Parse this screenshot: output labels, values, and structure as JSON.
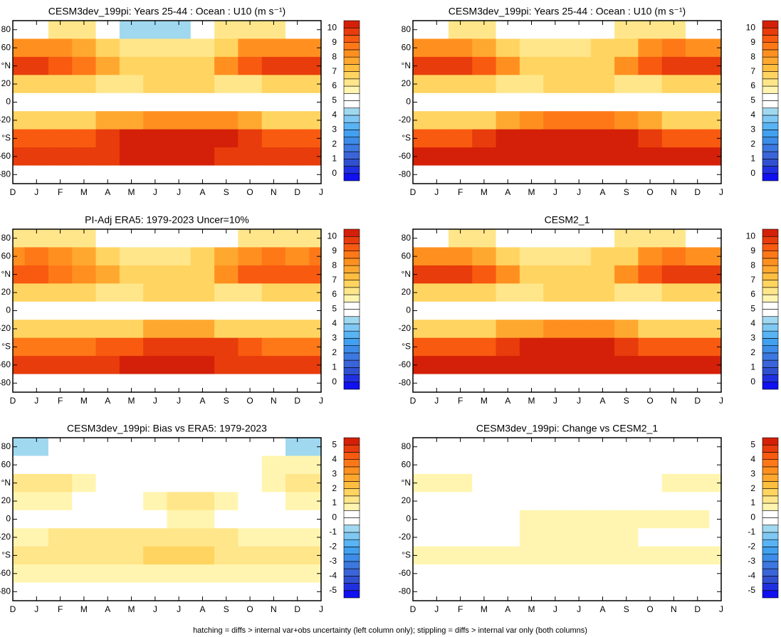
{
  "chart_data": [
    {
      "type": "heatmap",
      "title": "CESM3dev_199pi: Years 25-44 : Ocean : U10 (m s⁻¹)",
      "categories": [
        "D",
        "J",
        "F",
        "M",
        "A",
        "M",
        "J",
        "J",
        "A",
        "S",
        "O",
        "N",
        "D",
        "J"
      ],
      "y": [
        80,
        60,
        40,
        20,
        0,
        -20,
        -40,
        -60,
        -80
      ],
      "ylim": [
        -90,
        90
      ],
      "yticks": [
        80,
        60,
        {
          "value": 40,
          "label": "°N"
        },
        20,
        0,
        -20,
        {
          "value": -40,
          "label": "°S"
        },
        -60,
        -80
      ],
      "values": [
        [
          5,
          5,
          6,
          6,
          5,
          4,
          4,
          4,
          5,
          6,
          6,
          6,
          5,
          5
        ],
        [
          8,
          8,
          8,
          7.5,
          7,
          6,
          6,
          6,
          6,
          7,
          8,
          8,
          8,
          8
        ],
        [
          9.5,
          9.5,
          9,
          8.5,
          7.5,
          7,
          6.5,
          6.5,
          7,
          8,
          9,
          9.5,
          9.5,
          9.5
        ],
        [
          7,
          7,
          7,
          6.5,
          6,
          6,
          7,
          7,
          7,
          6,
          6,
          6.5,
          7,
          7
        ],
        [
          5,
          5,
          5,
          4.5,
          4.5,
          5,
          5,
          5,
          5,
          5,
          5,
          5,
          5,
          5
        ],
        [
          7,
          7,
          7,
          7,
          7.5,
          7.5,
          8,
          8,
          8,
          8,
          7.5,
          7,
          7,
          7
        ],
        [
          9,
          9,
          9,
          9,
          9.5,
          10,
          10,
          10,
          10,
          10,
          9.5,
          9,
          9,
          9
        ],
        [
          9.5,
          9.5,
          9.5,
          9.5,
          9.5,
          10,
          10,
          10,
          10,
          9.5,
          9.5,
          9.5,
          9.5,
          9.5
        ],
        [
          5,
          5,
          5,
          5,
          5,
          5,
          5,
          5,
          5,
          5,
          5,
          5,
          5,
          5
        ]
      ],
      "colorbar": {
        "ticks": [
          0,
          1,
          2,
          3,
          4,
          5,
          6,
          7,
          8,
          9,
          10
        ]
      }
    },
    {
      "type": "heatmap",
      "title": "CESM3dev_199pi: Years 25-44 : Ocean : U10 (m s⁻¹)",
      "categories": [
        "D",
        "J",
        "F",
        "M",
        "A",
        "M",
        "J",
        "J",
        "A",
        "S",
        "O",
        "N",
        "D",
        "J"
      ],
      "y": [
        80,
        60,
        40,
        20,
        0,
        -20,
        -40,
        -60,
        -80
      ],
      "ylim": [
        -90,
        90
      ],
      "yticks": [
        80,
        60,
        {
          "value": 40,
          "label": "°N"
        },
        20,
        0,
        -20,
        {
          "value": -40,
          "label": "°S"
        },
        -60,
        -80
      ],
      "values": [
        [
          5,
          5,
          6,
          6,
          5,
          5,
          5,
          5,
          5,
          6,
          6,
          6,
          5,
          5
        ],
        [
          8,
          8,
          8,
          7.5,
          7,
          6,
          6,
          6,
          6.5,
          7,
          8,
          8.5,
          8,
          8
        ],
        [
          9.5,
          9.5,
          9.5,
          9,
          8,
          7,
          7,
          7,
          7,
          8,
          9,
          9.5,
          9.5,
          9.5
        ],
        [
          7,
          7,
          7,
          6.5,
          6,
          6,
          6.5,
          7,
          7,
          6,
          6,
          6.5,
          7,
          7
        ],
        [
          5,
          5,
          5,
          4.5,
          4.5,
          5,
          5,
          5,
          5,
          5,
          5,
          5,
          5,
          5
        ],
        [
          7,
          7,
          7,
          7,
          7.5,
          8,
          8.5,
          8.5,
          8.5,
          8,
          7.5,
          7,
          7,
          7
        ],
        [
          9,
          9,
          9,
          9.5,
          10,
          10,
          10.5,
          10.5,
          10.5,
          10,
          9.5,
          9,
          9,
          9
        ],
        [
          10,
          10,
          10,
          10,
          10,
          10.5,
          10.5,
          10.5,
          10.5,
          10,
          10,
          10,
          10,
          10
        ],
        [
          5,
          5,
          5,
          5,
          5,
          5,
          5,
          5,
          5,
          5,
          5,
          5,
          5,
          5
        ]
      ],
      "colorbar": {
        "ticks": [
          0,
          1,
          2,
          3,
          4,
          5,
          6,
          7,
          8,
          9,
          10
        ]
      }
    },
    {
      "type": "heatmap",
      "title": "PI-Adj ERA5: 1979-2023 Uncer=10%",
      "categories": [
        "D",
        "J",
        "F",
        "M",
        "A",
        "M",
        "J",
        "J",
        "A",
        "S",
        "O",
        "N",
        "D",
        "J"
      ],
      "y": [
        80,
        60,
        40,
        20,
        0,
        -20,
        -40,
        -60,
        -80
      ],
      "ylim": [
        -90,
        90
      ],
      "yticks": [
        80,
        60,
        {
          "value": 40,
          "label": "°N"
        },
        20,
        0,
        -20,
        {
          "value": -40,
          "label": "°S"
        },
        -60,
        -80
      ],
      "values": [
        [
          6,
          6,
          6,
          6,
          5,
          5,
          5,
          5,
          5,
          5,
          6,
          6,
          6,
          6
        ],
        [
          8,
          8.5,
          8,
          7.5,
          7,
          6,
          6,
          6,
          6.5,
          7.5,
          8,
          8.5,
          8,
          8.5
        ],
        [
          9,
          9,
          8.5,
          8,
          7.5,
          7,
          6.5,
          6.5,
          7,
          8,
          9,
          9,
          9,
          9
        ],
        [
          7,
          7,
          7,
          6.5,
          6,
          6,
          6.5,
          6.5,
          6.5,
          6,
          6,
          6.5,
          7,
          7
        ],
        [
          5,
          5,
          5,
          4.5,
          5,
          5,
          5,
          5,
          5,
          5,
          5,
          5,
          5,
          5
        ],
        [
          6.5,
          6.5,
          6.5,
          6.5,
          7,
          7,
          7.5,
          7.5,
          7.5,
          7,
          7,
          6.5,
          6.5,
          6.5
        ],
        [
          8.5,
          8.5,
          8.5,
          8.5,
          9,
          9,
          9.5,
          9.5,
          9.5,
          9.5,
          9,
          8.5,
          8.5,
          8.5
        ],
        [
          9.5,
          9.5,
          9.5,
          9.5,
          9.5,
          10,
          10,
          10,
          10,
          9.5,
          9.5,
          9.5,
          9.5,
          9.5
        ],
        [
          5,
          5,
          5,
          5,
          5,
          5,
          5,
          5,
          5,
          5,
          5,
          5,
          5,
          5
        ]
      ],
      "colorbar": {
        "ticks": [
          0,
          1,
          2,
          3,
          4,
          5,
          6,
          7,
          8,
          9,
          10
        ]
      }
    },
    {
      "type": "heatmap",
      "title": "CESM2_1",
      "categories": [
        "D",
        "J",
        "F",
        "M",
        "A",
        "M",
        "J",
        "J",
        "A",
        "S",
        "O",
        "N",
        "D",
        "J"
      ],
      "y": [
        80,
        60,
        40,
        20,
        0,
        -20,
        -40,
        -60,
        -80
      ],
      "ylim": [
        -90,
        90
      ],
      "yticks": [
        80,
        60,
        {
          "value": 40,
          "label": "°N"
        },
        20,
        0,
        -20,
        {
          "value": -40,
          "label": "°S"
        },
        -60,
        -80
      ],
      "values": [
        [
          5,
          5,
          6,
          6,
          5,
          5,
          5,
          5,
          5,
          6,
          6,
          6,
          5,
          5
        ],
        [
          8,
          8,
          8,
          7.5,
          7,
          6,
          6,
          6,
          6.5,
          7,
          8,
          8.5,
          8,
          8
        ],
        [
          9.5,
          9.5,
          9.5,
          9,
          8,
          7,
          7,
          7,
          7,
          8,
          9,
          9.5,
          9.5,
          9.5
        ],
        [
          7,
          7,
          7,
          6.5,
          6,
          6,
          6.5,
          7,
          7,
          6,
          6,
          6.5,
          7,
          7
        ],
        [
          5,
          5,
          4.5,
          4.5,
          4.5,
          4.5,
          5,
          5,
          5,
          5,
          5,
          5,
          5,
          5
        ],
        [
          7,
          7,
          7,
          7,
          7.5,
          7.5,
          8,
          8,
          8,
          7.5,
          7,
          7,
          7,
          7
        ],
        [
          9,
          9,
          9,
          9,
          9.5,
          10,
          10,
          10,
          10,
          9.5,
          9,
          9,
          9,
          9
        ],
        [
          10,
          10,
          10,
          10,
          10,
          10.5,
          10.5,
          10.5,
          10.5,
          10,
          10,
          10,
          10,
          10
        ],
        [
          5,
          5,
          5,
          5,
          5,
          5,
          5,
          5,
          5,
          5,
          5,
          5,
          5,
          5
        ]
      ],
      "colorbar": {
        "ticks": [
          0,
          1,
          2,
          3,
          4,
          5,
          6,
          7,
          8,
          9,
          10
        ]
      }
    },
    {
      "type": "heatmap",
      "title": "CESM3dev_199pi: Bias vs ERA5: 1979-2023",
      "categories": [
        "D",
        "J",
        "F",
        "M",
        "A",
        "M",
        "J",
        "J",
        "A",
        "S",
        "O",
        "N",
        "D",
        "J"
      ],
      "y": [
        80,
        60,
        40,
        20,
        0,
        -20,
        -40,
        -60,
        -80
      ],
      "ylim": [
        -90,
        90
      ],
      "yticks": [
        80,
        60,
        {
          "value": 40,
          "label": "°N"
        },
        20,
        0,
        -20,
        {
          "value": -40,
          "label": "°S"
        },
        -60,
        -80
      ],
      "values": [
        [
          -1,
          -1,
          -0.5,
          0,
          0,
          0,
          0,
          0,
          0,
          0,
          0,
          -0.5,
          -1,
          -1
        ],
        [
          0.3,
          0.3,
          0,
          0,
          0,
          0,
          0,
          0,
          0,
          0,
          0.3,
          0.6,
          0.6,
          0.6
        ],
        [
          1,
          1,
          1,
          0.8,
          0.3,
          0,
          0,
          0,
          0,
          0,
          0.3,
          0.8,
          1,
          1
        ],
        [
          0.8,
          0.8,
          0.8,
          0.3,
          0,
          0,
          0.8,
          1,
          1,
          0.5,
          0.3,
          0.3,
          0.8,
          0.8
        ],
        [
          0,
          0,
          0,
          0,
          0,
          0,
          0.3,
          0.8,
          0.8,
          0.3,
          0,
          0,
          0,
          0
        ],
        [
          0.8,
          0.8,
          1,
          1,
          1,
          1.2,
          1.2,
          1.2,
          1,
          1,
          0.8,
          0.8,
          0.8,
          0.8
        ],
        [
          1,
          1,
          1,
          1,
          1,
          1,
          1.5,
          1.5,
          1.5,
          1.2,
          1,
          1,
          1,
          1
        ],
        [
          0.6,
          0.6,
          0.6,
          0.6,
          0.8,
          0.8,
          0.8,
          0.8,
          0.8,
          0.8,
          0.6,
          0.6,
          0.6,
          0.6
        ],
        [
          0,
          0,
          0,
          0,
          0,
          0,
          0,
          0,
          0,
          0,
          0,
          0,
          0,
          0
        ]
      ],
      "colorbar": {
        "ticks": [
          5,
          4,
          3,
          2,
          1,
          0,
          -1,
          -2,
          -3,
          -4,
          -5
        ]
      }
    },
    {
      "type": "heatmap",
      "title": "CESM3dev_199pi: Change vs CESM2_1",
      "categories": [
        "D",
        "J",
        "F",
        "M",
        "A",
        "M",
        "J",
        "J",
        "A",
        "S",
        "O",
        "N",
        "D",
        "J"
      ],
      "y": [
        80,
        60,
        40,
        20,
        0,
        -20,
        -40,
        -60,
        -80
      ],
      "ylim": [
        -90,
        90
      ],
      "yticks": [
        80,
        60,
        {
          "value": 40,
          "label": "°N"
        },
        20,
        0,
        -20,
        {
          "value": -40,
          "label": "°S"
        },
        -60,
        -80
      ],
      "values": [
        [
          0,
          0,
          0,
          0,
          0,
          0,
          0,
          0,
          0,
          0,
          0,
          0,
          0,
          0
        ],
        [
          0,
          0,
          0,
          0,
          0,
          0,
          0,
          0,
          0,
          0,
          0,
          0,
          0,
          0
        ],
        [
          0.8,
          0.8,
          0.8,
          0.3,
          0,
          0,
          0,
          0,
          0,
          0,
          0,
          0.5,
          0.8,
          0.8
        ],
        [
          0,
          0,
          0,
          0,
          0,
          0,
          0,
          0,
          0,
          0,
          0,
          0,
          0,
          0
        ],
        [
          0,
          0,
          0,
          0,
          0,
          0.6,
          0.6,
          0.6,
          0.6,
          0.6,
          0.6,
          0.6,
          0.6,
          0
        ],
        [
          0,
          0,
          0,
          0,
          0.3,
          0.6,
          0.8,
          0.8,
          0.8,
          0.6,
          0,
          0,
          0,
          0
        ],
        [
          0.8,
          0.8,
          0.8,
          0.8,
          0.8,
          0.8,
          0.8,
          0.8,
          0.8,
          0.8,
          0.8,
          0.8,
          0.8,
          0.8
        ],
        [
          0,
          0,
          0,
          0,
          0,
          0,
          0,
          0,
          0,
          0,
          0,
          0,
          0,
          0
        ],
        [
          0,
          0,
          0,
          0,
          0,
          0,
          0,
          0,
          0,
          0,
          0,
          0,
          0,
          0
        ]
      ],
      "colorbar": {
        "ticks": [
          5,
          4,
          3,
          2,
          1,
          0,
          -1,
          -2,
          -3,
          -4,
          -5
        ]
      }
    }
  ],
  "colors": [
    "#1010f0",
    "#2030e0",
    "#3050d0",
    "#3a64d8",
    "#3c78e0",
    "#3c8ce8",
    "#42a0f0",
    "#58b4f4",
    "#80c8f4",
    "#a0d8f0",
    "#ffffff",
    "#ffffff",
    "#fff5b0",
    "#ffe68a",
    "#ffd460",
    "#ffbe40",
    "#ffa830",
    "#ff9020",
    "#ff7818",
    "#f85a10",
    "#e83c0c",
    "#d42008"
  ],
  "caption": "hatching = diffs > internal var+obs uncertainty (left column only); stippling = diffs > internal var only (both columns)"
}
